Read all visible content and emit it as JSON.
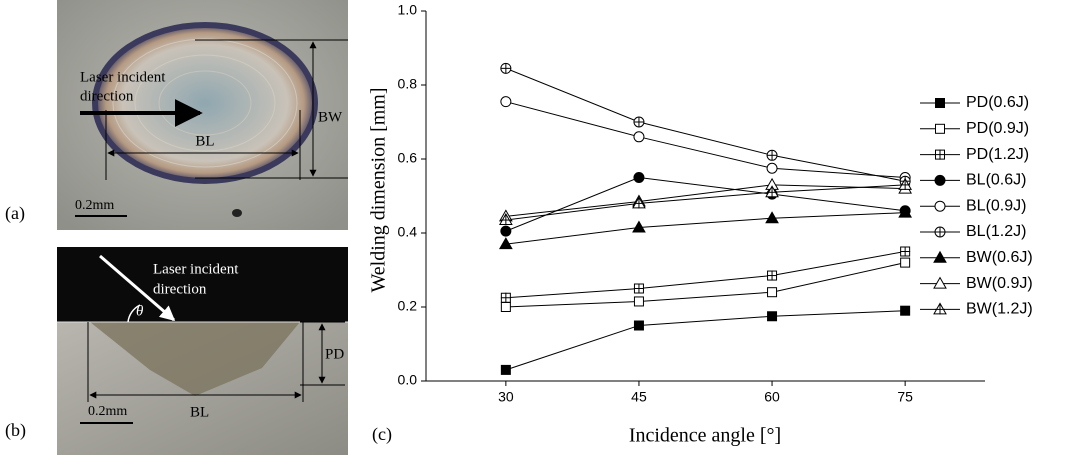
{
  "figure": {
    "panel_a": {
      "label": "(a)",
      "direction_line1": "Laser incident",
      "direction_line2": "direction",
      "bl": "BL",
      "bw": "BW",
      "scale": "0.2mm"
    },
    "panel_b": {
      "label": "(b)",
      "direction_line1": "Laser incident",
      "direction_line2": "direction",
      "theta": "θ",
      "bl": "BL",
      "pd": "PD",
      "scale": "0.2mm"
    },
    "panel_c": {
      "label": "(c)"
    }
  },
  "chart_data": {
    "type": "line",
    "x_label": "Incidence angle [°]",
    "y_label": "Welding dimension [mm]",
    "x": [
      30,
      45,
      60,
      75
    ],
    "xlim": [
      21,
      84
    ],
    "xticks": [
      30,
      45,
      60,
      75
    ],
    "ylim": [
      0,
      1
    ],
    "yticks": [
      {
        "value": 0,
        "label": "0.0"
      },
      0.2,
      0.4,
      0.6,
      0.8,
      {
        "value": 1,
        "label": "1.0"
      }
    ],
    "grid": false,
    "legend": "right",
    "series": [
      {
        "name": "PD(0.6J)",
        "color": "#000000",
        "marker": "square-filled",
        "values": [
          0.03,
          0.15,
          0.175,
          0.19
        ]
      },
      {
        "name": "PD(0.9J)",
        "color": "#000000",
        "marker": "square-open",
        "values": [
          0.2,
          0.215,
          0.24,
          0.32
        ]
      },
      {
        "name": "PD(1.2J)",
        "color": "#000000",
        "marker": "square-plus",
        "values": [
          0.225,
          0.25,
          0.285,
          0.35
        ]
      },
      {
        "name": "BL(0.6J)",
        "color": "#000000",
        "marker": "circle-filled",
        "values": [
          0.405,
          0.55,
          0.505,
          0.46
        ]
      },
      {
        "name": "BL(0.9J)",
        "color": "#000000",
        "marker": "circle-open",
        "values": [
          0.755,
          0.66,
          0.575,
          0.55
        ]
      },
      {
        "name": "BL(1.2J)",
        "color": "#000000",
        "marker": "circle-plus",
        "values": [
          0.845,
          0.7,
          0.61,
          0.54
        ]
      },
      {
        "name": "BW(0.6J)",
        "color": "#000000",
        "marker": "triangle-filled",
        "values": [
          0.37,
          0.415,
          0.44,
          0.455
        ]
      },
      {
        "name": "BW(0.9J)",
        "color": "#000000",
        "marker": "triangle-open",
        "values": [
          0.445,
          0.485,
          0.53,
          0.52
        ]
      },
      {
        "name": "BW(1.2J)",
        "color": "#000000",
        "marker": "triangle-plus",
        "values": [
          0.435,
          0.48,
          0.51,
          0.53
        ]
      }
    ]
  }
}
